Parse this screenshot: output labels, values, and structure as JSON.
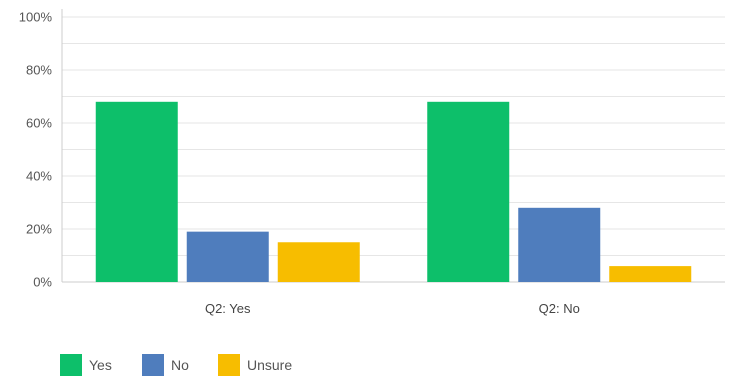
{
  "chart_data": {
    "type": "bar",
    "categories": [
      "Q2: Yes",
      "Q2: No"
    ],
    "series": [
      {
        "name": "Yes",
        "color": "#0DBF6A",
        "values": [
          68,
          68
        ]
      },
      {
        "name": "No",
        "color": "#4F7DBD",
        "values": [
          19,
          28
        ]
      },
      {
        "name": "Unsure",
        "color": "#F7BD00",
        "values": [
          15,
          6
        ]
      }
    ],
    "yticks": [
      "0%",
      "20%",
      "40%",
      "60%",
      "80%",
      "100%"
    ],
    "ylim": [
      0,
      100
    ],
    "ystep": 20,
    "grid": true,
    "legend": "bottom-left",
    "title": "",
    "xlabel": "",
    "ylabel": ""
  }
}
